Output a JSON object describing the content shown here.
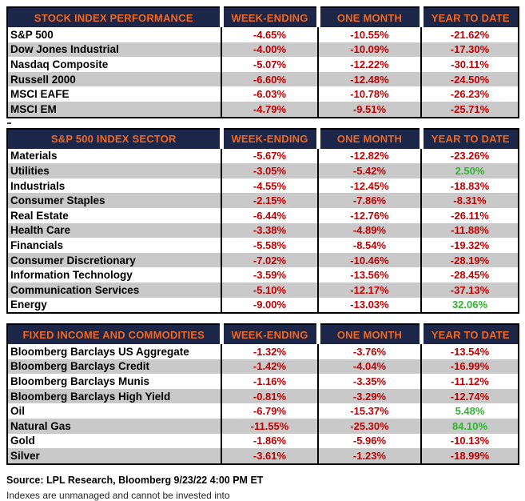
{
  "report": {
    "footer": {
      "source": "Source: LPL Research, Bloomberg 9/23/22 4:00 PM ET",
      "disclaimer": "Indexes are unmanaged and cannot be invested into"
    }
  },
  "colors": {
    "header_bg": "#1c2649",
    "header_text": "#f4671f",
    "negative_value": "#c00000",
    "positive_value": "#2fb42f",
    "row_stripe": "#c9c9c9",
    "row_base": "#ffffff",
    "table_border": "#000000",
    "label_text": "#000000"
  },
  "chart_data": [
    {
      "type": "table",
      "title": "STOCK INDEX PERFORMANCE",
      "columns": [
        "WEEK-ENDING",
        "ONE MONTH",
        "YEAR TO DATE"
      ],
      "rows": [
        [
          "S&P 500",
          "-4.65%",
          "-10.55%",
          "-21.62%"
        ],
        [
          "Dow Jones Industrial",
          "-4.00%",
          "-10.09%",
          "-17.30%"
        ],
        [
          "Nasdaq Composite",
          "-5.07%",
          "-12.22%",
          "-30.11%"
        ],
        [
          "Russell 2000",
          "-6.60%",
          "-12.48%",
          "-24.50%"
        ],
        [
          "MSCI EAFE",
          "-6.03%",
          "-10.78%",
          "-26.23%"
        ],
        [
          "MSCI EM",
          "-4.79%",
          "-9.51%",
          "-25.71%"
        ]
      ]
    },
    {
      "type": "table",
      "title": "S&P 500 INDEX SECTOR",
      "columns": [
        "WEEK-ENDING",
        "ONE MONTH",
        "YEAR TO DATE"
      ],
      "rows": [
        [
          "Materials",
          "-5.67%",
          "-12.82%",
          "-23.26%"
        ],
        [
          "Utilities",
          "-3.05%",
          "-5.42%",
          "2.50%"
        ],
        [
          "Industrials",
          "-4.55%",
          "-12.45%",
          "-18.83%"
        ],
        [
          "Consumer Staples",
          "-2.15%",
          "-7.86%",
          "-8.31%"
        ],
        [
          "Real Estate",
          "-6.44%",
          "-12.76%",
          "-26.11%"
        ],
        [
          "Health Care",
          "-3.38%",
          "-4.89%",
          "-11.88%"
        ],
        [
          "Financials",
          "-5.58%",
          "-8.54%",
          "-19.32%"
        ],
        [
          "Consumer Discretionary",
          "-7.02%",
          "-10.46%",
          "-28.19%"
        ],
        [
          "Information Technology",
          "-3.59%",
          "-13.56%",
          "-28.45%"
        ],
        [
          "Communication Services",
          "-5.10%",
          "-12.17%",
          "-37.13%"
        ],
        [
          "Energy",
          "-9.00%",
          "-13.03%",
          "32.06%"
        ]
      ]
    },
    {
      "type": "table",
      "title": "FIXED INCOME AND COMMODITIES",
      "columns": [
        "WEEK-ENDING",
        "ONE MONTH",
        "YEAR TO DATE"
      ],
      "rows": [
        [
          "Bloomberg Barclays US Aggregate",
          "-1.32%",
          "-3.76%",
          "-13.54%"
        ],
        [
          "Bloomberg Barclays Credit",
          "-1.42%",
          "-4.04%",
          "-16.99%"
        ],
        [
          "Bloomberg Barclays Munis",
          "-1.16%",
          "-3.35%",
          "-11.12%"
        ],
        [
          "Bloomberg Barclays High Yield",
          "-0.81%",
          "-3.29%",
          "-12.74%"
        ],
        [
          "Oil",
          "-6.79%",
          "-15.37%",
          "5.48%"
        ],
        [
          "Natural Gas",
          "-11.55%",
          "-25.30%",
          "84.10%"
        ],
        [
          "Gold",
          "-1.86%",
          "-5.96%",
          "-10.13%"
        ],
        [
          "Silver",
          "-3.61%",
          "-1.23%",
          "-18.99%"
        ]
      ]
    }
  ]
}
